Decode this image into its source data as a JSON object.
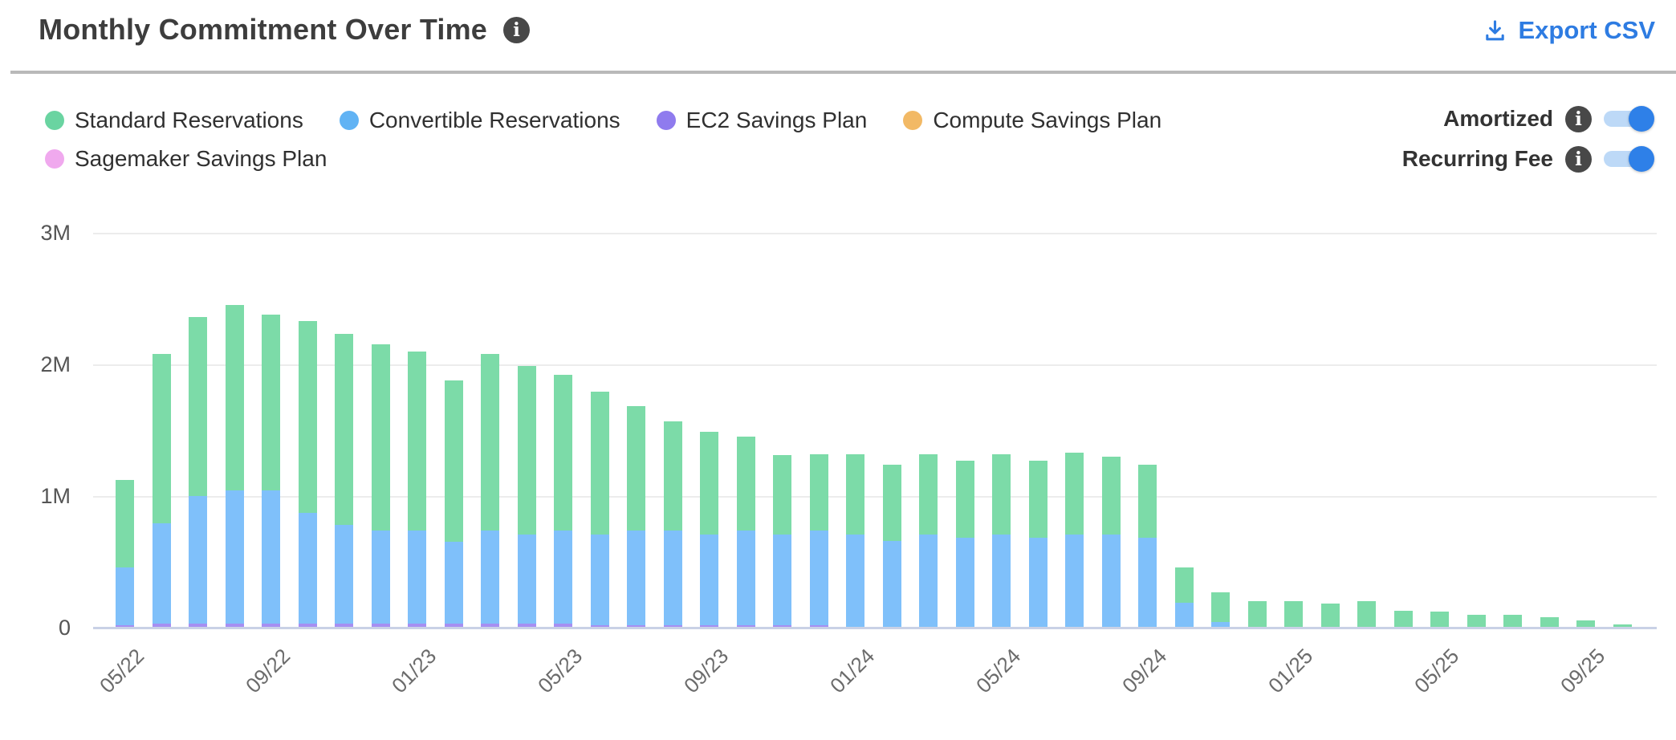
{
  "header": {
    "title": "Monthly Commitment Over Time",
    "export_label": "Export CSV"
  },
  "legend": {
    "items": [
      {
        "label": "Standard Reservations",
        "color": "#6ad4a1"
      },
      {
        "label": "Convertible Reservations",
        "color": "#61b3f4"
      },
      {
        "label": "EC2 Savings Plan",
        "color": "#8f7bee"
      },
      {
        "label": "Compute Savings Plan",
        "color": "#f2b965"
      },
      {
        "label": "Sagemaker Savings Plan",
        "color": "#f0a9ee"
      }
    ]
  },
  "controls": {
    "toggles": [
      {
        "label": "Amortized",
        "enabled": true
      },
      {
        "label": "Recurring Fee",
        "enabled": true
      }
    ]
  },
  "colors": {
    "accent_blue": "#2e7ce2",
    "toggle_track": "#bdd9f7",
    "toggle_knob": "#2e80e8",
    "axis_line": "#c9d1e6",
    "gridline": "#ececec"
  },
  "chart_data": {
    "type": "bar",
    "stacked": true,
    "value_unit": "M (millions of $, read from y-axis)",
    "ylim": [
      0,
      3
    ],
    "grid": "horizontal",
    "legend_position": "top-left",
    "y_ticks": [
      "0",
      "1M",
      "2M",
      "3M"
    ],
    "x_ticks_shown": [
      "05/22",
      "09/22",
      "01/23",
      "05/23",
      "09/23",
      "01/24",
      "05/24",
      "09/24",
      "01/25",
      "05/25",
      "09/25"
    ],
    "x_tick_every": 4,
    "x": [
      "05/22",
      "06/22",
      "07/22",
      "08/22",
      "09/22",
      "10/22",
      "11/22",
      "12/22",
      "01/23",
      "02/23",
      "03/23",
      "04/23",
      "05/23",
      "06/23",
      "07/23",
      "08/23",
      "09/23",
      "10/23",
      "11/23",
      "12/23",
      "01/24",
      "02/24",
      "03/24",
      "04/24",
      "05/24",
      "06/24",
      "07/24",
      "08/24",
      "09/24",
      "10/24",
      "11/24",
      "12/24",
      "01/25",
      "02/25",
      "03/25",
      "04/25",
      "05/25",
      "06/25",
      "07/25",
      "08/25",
      "09/25",
      "10/25"
    ],
    "series": [
      {
        "name": "Standard Reservations",
        "color": "#7cdba8",
        "values": [
          0.66,
          1.29,
          1.36,
          1.41,
          1.34,
          1.46,
          1.45,
          1.41,
          1.36,
          1.23,
          1.34,
          1.28,
          1.18,
          1.08,
          0.94,
          0.83,
          0.78,
          0.71,
          0.6,
          0.58,
          0.61,
          0.58,
          0.61,
          0.59,
          0.61,
          0.59,
          0.62,
          0.59,
          0.56,
          0.27,
          0.23,
          0.2,
          0.2,
          0.18,
          0.2,
          0.13,
          0.12,
          0.1,
          0.1,
          0.08,
          0.055,
          0.025
        ]
      },
      {
        "name": "Convertible Reservations",
        "color": "#7fc0fa",
        "values": [
          0.44,
          0.76,
          0.97,
          1.01,
          1.01,
          0.84,
          0.75,
          0.71,
          0.71,
          0.62,
          0.71,
          0.68,
          0.71,
          0.69,
          0.72,
          0.72,
          0.69,
          0.72,
          0.69,
          0.72,
          0.71,
          0.66,
          0.71,
          0.68,
          0.71,
          0.68,
          0.71,
          0.71,
          0.68,
          0.19,
          0.04,
          0,
          0,
          0,
          0,
          0,
          0,
          0,
          0,
          0,
          0,
          0
        ]
      },
      {
        "name": "EC2 Savings Plan",
        "color": "#a68ff2",
        "values": [
          0.02,
          0.03,
          0.03,
          0.03,
          0.03,
          0.03,
          0.03,
          0.03,
          0.03,
          0.03,
          0.03,
          0.03,
          0.03,
          0.02,
          0.02,
          0.02,
          0.02,
          0.02,
          0.02,
          0.02,
          0,
          0,
          0,
          0,
          0,
          0,
          0,
          0,
          0,
          0,
          0,
          0,
          0,
          0,
          0,
          0,
          0,
          0,
          0,
          0,
          0,
          0
        ]
      },
      {
        "name": "Compute Savings Plan",
        "color": "#f2b965",
        "values": [
          0,
          0,
          0,
          0,
          0,
          0,
          0,
          0,
          0,
          0,
          0,
          0,
          0,
          0,
          0,
          0,
          0,
          0,
          0,
          0,
          0,
          0,
          0,
          0,
          0,
          0,
          0,
          0,
          0,
          0,
          0,
          0,
          0,
          0,
          0,
          0,
          0,
          0,
          0,
          0,
          0,
          0
        ]
      },
      {
        "name": "Sagemaker Savings Plan",
        "color": "#f0a9ee",
        "values": [
          0,
          0,
          0,
          0,
          0,
          0,
          0,
          0,
          0,
          0,
          0,
          0,
          0,
          0,
          0,
          0,
          0,
          0,
          0,
          0,
          0,
          0,
          0,
          0,
          0,
          0,
          0,
          0,
          0,
          0,
          0,
          0,
          0,
          0,
          0,
          0,
          0,
          0,
          0,
          0,
          0,
          0
        ]
      }
    ],
    "stack_order_bottom_to_top": [
      "EC2 Savings Plan",
      "Sagemaker Savings Plan",
      "Compute Savings Plan",
      "Convertible Reservations",
      "Standard Reservations"
    ]
  }
}
